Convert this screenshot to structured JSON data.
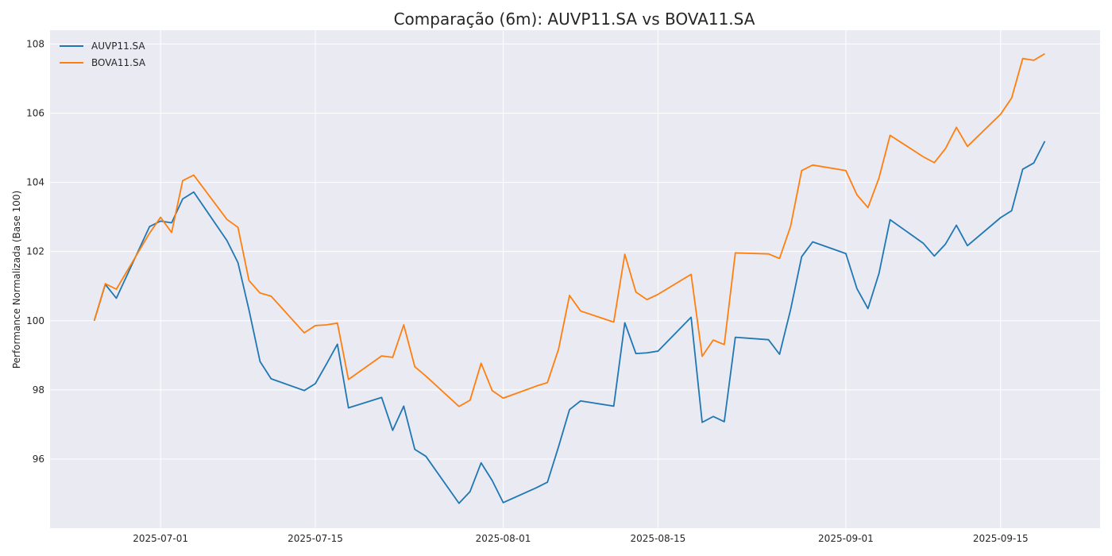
{
  "chart_data": {
    "type": "line",
    "title": "Comparação (6m): AUVP11.SA vs BOVA11.SA",
    "xlabel": "",
    "ylabel": "Performance Normalizada (Base 100)",
    "xlim": [
      "2025-06-21",
      "2025-09-24"
    ],
    "ylim": [
      94.0,
      108.4
    ],
    "x_ticks": [
      "2025-07-01",
      "2025-07-15",
      "2025-08-01",
      "2025-08-15",
      "2025-09-01",
      "2025-09-15"
    ],
    "y_ticks": [
      96,
      98,
      100,
      102,
      104,
      106,
      108
    ],
    "grid": true,
    "legend_position": "top-left",
    "background": "#eaeaf2",
    "x": [
      "2025-06-25",
      "2025-06-26",
      "2025-06-27",
      "2025-06-30",
      "2025-07-01",
      "2025-07-02",
      "2025-07-03",
      "2025-07-04",
      "2025-07-07",
      "2025-07-08",
      "2025-07-09",
      "2025-07-10",
      "2025-07-11",
      "2025-07-14",
      "2025-07-15",
      "2025-07-16",
      "2025-07-17",
      "2025-07-18",
      "2025-07-21",
      "2025-07-22",
      "2025-07-23",
      "2025-07-24",
      "2025-07-25",
      "2025-07-28",
      "2025-07-29",
      "2025-07-30",
      "2025-07-31",
      "2025-08-01",
      "2025-08-04",
      "2025-08-05",
      "2025-08-06",
      "2025-08-07",
      "2025-08-08",
      "2025-08-11",
      "2025-08-12",
      "2025-08-13",
      "2025-08-14",
      "2025-08-15",
      "2025-08-18",
      "2025-08-19",
      "2025-08-20",
      "2025-08-21",
      "2025-08-22",
      "2025-08-25",
      "2025-08-26",
      "2025-08-27",
      "2025-08-28",
      "2025-08-29",
      "2025-09-01",
      "2025-09-02",
      "2025-09-03",
      "2025-09-04",
      "2025-09-05",
      "2025-09-08",
      "2025-09-09",
      "2025-09-10",
      "2025-09-11",
      "2025-09-12",
      "2025-09-15",
      "2025-09-16",
      "2025-09-17",
      "2025-09-18",
      "2025-09-19"
    ],
    "series": [
      {
        "name": "AUVP11.SA",
        "color": "#1f77b4",
        "values": [
          100.0,
          101.05,
          100.65,
          102.72,
          102.88,
          102.83,
          103.52,
          103.72,
          102.32,
          101.68,
          100.31,
          98.82,
          98.32,
          97.98,
          98.18,
          98.74,
          99.32,
          97.48,
          97.78,
          96.83,
          97.53,
          96.28,
          96.08,
          94.72,
          95.06,
          95.89,
          95.38,
          94.74,
          95.17,
          95.33,
          96.35,
          97.43,
          97.68,
          97.53,
          99.94,
          99.05,
          99.07,
          99.12,
          100.1,
          97.06,
          97.23,
          97.08,
          99.52,
          99.45,
          99.03,
          100.32,
          101.85,
          102.28,
          101.94,
          100.93,
          100.35,
          101.37,
          102.92,
          102.24,
          101.87,
          102.21,
          102.76,
          102.17,
          102.98,
          103.18,
          104.38,
          104.56,
          105.19
        ]
      },
      {
        "name": "BOVA11.SA",
        "color": "#ff7f0e",
        "values": [
          100.0,
          101.07,
          100.91,
          102.53,
          102.99,
          102.55,
          104.05,
          104.21,
          102.93,
          102.7,
          101.16,
          100.8,
          100.71,
          99.65,
          99.86,
          99.88,
          99.93,
          98.3,
          98.98,
          98.94,
          99.88,
          98.67,
          98.4,
          97.52,
          97.7,
          98.77,
          97.98,
          97.76,
          98.11,
          98.21,
          99.17,
          100.73,
          100.28,
          99.96,
          101.92,
          100.83,
          100.61,
          100.76,
          101.34,
          98.97,
          99.44,
          99.31,
          101.96,
          101.93,
          101.8,
          102.73,
          104.34,
          104.5,
          104.34,
          103.64,
          103.27,
          104.13,
          105.36,
          104.74,
          104.57,
          104.97,
          105.59,
          105.04,
          105.97,
          106.44,
          107.58,
          107.53,
          107.72
        ]
      }
    ]
  }
}
